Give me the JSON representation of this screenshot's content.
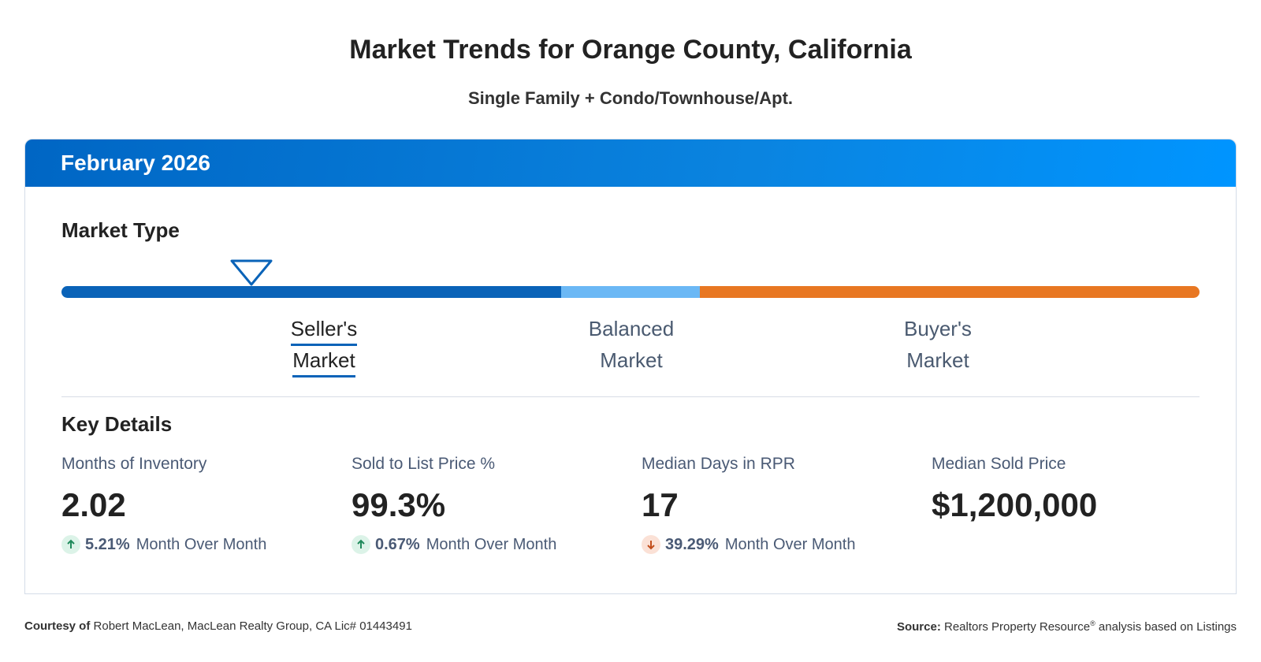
{
  "header": {
    "title": "Market Trends for Orange County, California",
    "subtitle": "Single Family + Condo/Townhouse/Apt."
  },
  "card": {
    "period": "February 2026"
  },
  "market_type": {
    "heading": "Market Type",
    "segments": [
      "Seller's Market",
      "Balanced Market",
      "Buyer's Market"
    ]
  },
  "key_details": {
    "heading": "Key Details",
    "metrics": [
      {
        "label": "Months of Inventory",
        "value": "2.02",
        "change": "5.21%",
        "change_text": "Month Over Month"
      },
      {
        "label": "Sold to List Price %",
        "value": "99.3%",
        "change": "0.67%",
        "change_text": "Month Over Month"
      },
      {
        "label": "Median Days in RPR",
        "value": "17",
        "change": "39.29%",
        "change_text": "Month Over Month"
      },
      {
        "label": "Median Sold Price",
        "value": "$1,200,000"
      }
    ]
  },
  "footer": {
    "courtesy_label": "Courtesy of",
    "courtesy_text": "Robert MacLean, MacLean Realty Group, CA Lic# 01443491",
    "source_label": "Source:",
    "source_text": "Realtors Property Resource",
    "source_mark": "®",
    "source_rest": "analysis based on Listings"
  }
}
